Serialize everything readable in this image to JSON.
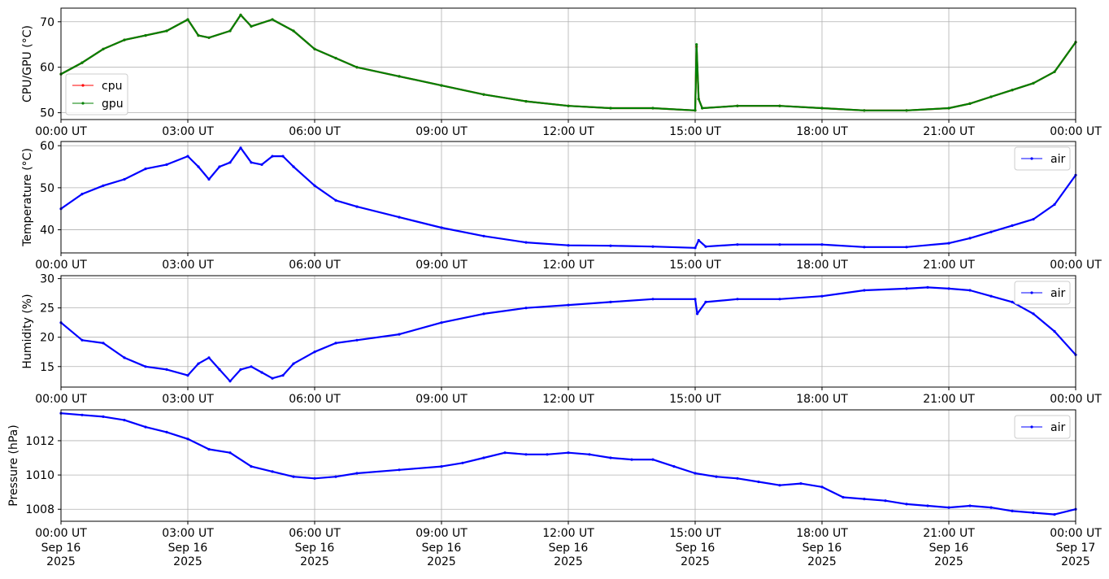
{
  "chart_data": [
    {
      "type": "line",
      "ylabel": "CPU/GPU (°C)",
      "ylim": [
        48.5,
        73
      ],
      "yticks": [
        50,
        60,
        70
      ],
      "grid": true,
      "legend": "lower-left",
      "xlim": [
        "2025-09-16T00:00Z",
        "2025-09-17T00:00Z"
      ],
      "xtick_labels": [
        "00:00 UT",
        "03:00 UT",
        "06:00 UT",
        "09:00 UT",
        "12:00 UT",
        "15:00 UT",
        "18:00 UT",
        "21:00 UT",
        "00:00 UT"
      ],
      "series": [
        {
          "name": "cpu",
          "color": "#ff0000",
          "x": [
            "00:00",
            "00:30",
            "01:00",
            "01:30",
            "02:00",
            "02:30",
            "03:00",
            "03:15",
            "03:30",
            "04:00",
            "04:15",
            "04:30",
            "05:00",
            "05:30",
            "06:00",
            "06:30",
            "07:00",
            "08:00",
            "09:00",
            "10:00",
            "11:00",
            "12:00",
            "13:00",
            "14:00",
            "15:00",
            "15:02",
            "15:05",
            "15:10",
            "16:00",
            "17:00",
            "18:00",
            "19:00",
            "20:00",
            "21:00",
            "21:30",
            "22:00",
            "22:30",
            "23:00",
            "23:30",
            "23:55"
          ],
          "values": [
            58.5,
            61,
            64,
            66,
            67,
            68,
            70.5,
            67,
            66.5,
            68,
            71.5,
            69,
            70.5,
            68,
            64,
            62,
            60,
            58,
            56,
            54,
            52.5,
            51.5,
            51,
            51,
            50.5,
            64.5,
            53,
            51,
            51.5,
            51.5,
            51,
            50.5,
            50.5,
            51,
            52,
            53.5,
            55,
            56.5,
            59,
            65.5
          ]
        },
        {
          "name": "gpu",
          "color": "#008000",
          "x": [
            "00:00",
            "00:30",
            "01:00",
            "01:30",
            "02:00",
            "02:30",
            "03:00",
            "03:15",
            "03:30",
            "04:00",
            "04:15",
            "04:30",
            "05:00",
            "05:30",
            "06:00",
            "06:30",
            "07:00",
            "08:00",
            "09:00",
            "10:00",
            "11:00",
            "12:00",
            "13:00",
            "14:00",
            "15:00",
            "15:02",
            "15:05",
            "15:10",
            "16:00",
            "17:00",
            "18:00",
            "19:00",
            "20:00",
            "21:00",
            "21:30",
            "22:00",
            "22:30",
            "23:00",
            "23:30",
            "23:55"
          ],
          "values": [
            58.5,
            61,
            64,
            66,
            67,
            68,
            70.5,
            67,
            66.5,
            68,
            71.5,
            69,
            70.5,
            68,
            64,
            62,
            60,
            58,
            56,
            54,
            52.5,
            51.5,
            51,
            51,
            50.5,
            65,
            53,
            51,
            51.5,
            51.5,
            51,
            50.5,
            50.5,
            51,
            52,
            53.5,
            55,
            56.5,
            59,
            65.5
          ]
        }
      ]
    },
    {
      "type": "line",
      "ylabel": "Temperature (°C)",
      "ylim": [
        34.5,
        61
      ],
      "yticks": [
        40,
        50,
        60
      ],
      "grid": true,
      "legend": "top-right",
      "xlim": [
        "2025-09-16T00:00Z",
        "2025-09-17T00:00Z"
      ],
      "xtick_labels": [
        "00:00 UT",
        "03:00 UT",
        "06:00 UT",
        "09:00 UT",
        "12:00 UT",
        "15:00 UT",
        "18:00 UT",
        "21:00 UT",
        "00:00 UT"
      ],
      "series": [
        {
          "name": "air",
          "color": "#0000ff",
          "x": [
            "00:00",
            "00:30",
            "01:00",
            "01:30",
            "02:00",
            "02:30",
            "03:00",
            "03:15",
            "03:30",
            "03:45",
            "04:00",
            "04:15",
            "04:30",
            "04:45",
            "05:00",
            "05:15",
            "05:30",
            "06:00",
            "06:30",
            "07:00",
            "08:00",
            "09:00",
            "10:00",
            "11:00",
            "12:00",
            "13:00",
            "14:00",
            "15:00",
            "15:05",
            "15:15",
            "16:00",
            "17:00",
            "18:00",
            "19:00",
            "20:00",
            "21:00",
            "21:30",
            "22:00",
            "22:30",
            "23:00",
            "23:30",
            "23:55"
          ],
          "values": [
            45,
            48.5,
            50.5,
            52,
            54.5,
            55.5,
            57.5,
            55,
            52,
            55,
            56,
            59.5,
            56,
            55.5,
            57.5,
            57.5,
            55,
            50.5,
            47,
            45.5,
            43,
            40.5,
            38.5,
            37,
            36.3,
            36.2,
            36,
            35.7,
            37.5,
            36,
            36.5,
            36.5,
            36.5,
            35.9,
            35.9,
            36.8,
            38,
            39.5,
            41,
            42.5,
            46,
            53
          ]
        }
      ]
    },
    {
      "type": "line",
      "ylabel": "Humidity (%)",
      "ylim": [
        11.5,
        30.5
      ],
      "yticks": [
        15,
        20,
        25,
        30
      ],
      "grid": true,
      "legend": "top-right",
      "xlim": [
        "2025-09-16T00:00Z",
        "2025-09-17T00:00Z"
      ],
      "xtick_labels": [
        "00:00 UT",
        "03:00 UT",
        "06:00 UT",
        "09:00 UT",
        "12:00 UT",
        "15:00 UT",
        "18:00 UT",
        "21:00 UT",
        "00:00 UT"
      ],
      "series": [
        {
          "name": "air",
          "color": "#0000ff",
          "x": [
            "00:00",
            "00:30",
            "01:00",
            "01:30",
            "02:00",
            "02:30",
            "03:00",
            "03:15",
            "03:30",
            "03:45",
            "04:00",
            "04:15",
            "04:30",
            "04:45",
            "05:00",
            "05:15",
            "05:30",
            "06:00",
            "06:30",
            "07:00",
            "08:00",
            "09:00",
            "10:00",
            "11:00",
            "12:00",
            "13:00",
            "14:00",
            "15:00",
            "15:03",
            "15:15",
            "16:00",
            "17:00",
            "18:00",
            "19:00",
            "20:00",
            "20:30",
            "21:00",
            "21:30",
            "22:00",
            "22:30",
            "23:00",
            "23:30",
            "23:55"
          ],
          "values": [
            22.5,
            19.5,
            19,
            16.5,
            15,
            14.5,
            13.5,
            15.5,
            16.5,
            14.5,
            12.5,
            14.5,
            15,
            14,
            13,
            13.5,
            15.5,
            17.5,
            19,
            19.5,
            20.5,
            22.5,
            24,
            25,
            25.5,
            26,
            26.5,
            26.5,
            24,
            26,
            26.5,
            26.5,
            27,
            28,
            28.3,
            28.5,
            28.3,
            28,
            27,
            26,
            24,
            21,
            17
          ]
        }
      ]
    },
    {
      "type": "line",
      "ylabel": "Pressure (hPa)",
      "ylim": [
        1007.3,
        1013.8
      ],
      "yticks": [
        1008,
        1010,
        1012
      ],
      "grid": true,
      "legend": "top-right",
      "xlim": [
        "2025-09-16T00:00Z",
        "2025-09-17T00:00Z"
      ],
      "xtick_labels": [
        "00:00 UT",
        "03:00 UT",
        "06:00 UT",
        "09:00 UT",
        "12:00 UT",
        "15:00 UT",
        "18:00 UT",
        "21:00 UT",
        "00:00 UT"
      ],
      "xtick_sublabels": [
        [
          "Sep 16",
          "2025"
        ],
        [
          "Sep 16",
          "2025"
        ],
        [
          "Sep 16",
          "2025"
        ],
        [
          "Sep 16",
          "2025"
        ],
        [
          "Sep 16",
          "2025"
        ],
        [
          "Sep 16",
          "2025"
        ],
        [
          "Sep 16",
          "2025"
        ],
        [
          "Sep 16",
          "2025"
        ],
        [
          "Sep 17",
          "2025"
        ]
      ],
      "series": [
        {
          "name": "air",
          "color": "#0000ff",
          "x": [
            "00:00",
            "00:30",
            "01:00",
            "01:30",
            "02:00",
            "02:30",
            "03:00",
            "03:30",
            "04:00",
            "04:30",
            "05:00",
            "05:30",
            "06:00",
            "06:30",
            "07:00",
            "08:00",
            "09:00",
            "09:30",
            "10:00",
            "10:30",
            "11:00",
            "11:30",
            "12:00",
            "12:30",
            "13:00",
            "13:30",
            "14:00",
            "14:30",
            "15:00",
            "15:30",
            "16:00",
            "16:30",
            "17:00",
            "17:30",
            "18:00",
            "18:30",
            "19:00",
            "19:30",
            "20:00",
            "20:30",
            "21:00",
            "21:30",
            "22:00",
            "22:30",
            "23:00",
            "23:30",
            "23:55"
          ],
          "values": [
            1013.6,
            1013.5,
            1013.4,
            1013.2,
            1012.8,
            1012.5,
            1012.1,
            1011.5,
            1011.3,
            1010.5,
            1010.2,
            1009.9,
            1009.8,
            1009.9,
            1010.1,
            1010.3,
            1010.5,
            1010.7,
            1011,
            1011.3,
            1011.2,
            1011.2,
            1011.3,
            1011.2,
            1011,
            1010.9,
            1010.9,
            1010.5,
            1010.1,
            1009.9,
            1009.8,
            1009.6,
            1009.4,
            1009.5,
            1009.3,
            1008.7,
            1008.6,
            1008.5,
            1008.3,
            1008.2,
            1008.1,
            1008.2,
            1008.1,
            1007.9,
            1007.8,
            1007.7,
            1008
          ]
        }
      ]
    }
  ]
}
